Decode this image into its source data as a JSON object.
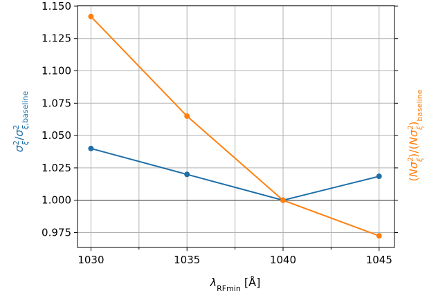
{
  "chart_data": {
    "type": "line",
    "x": [
      1030,
      1035,
      1040,
      1045
    ],
    "xlim": [
      1029.3,
      1045.8
    ],
    "xticks": [
      1030,
      1035,
      1040,
      1045
    ],
    "xlabel": {
      "main": "λ",
      "sub": "RFmin",
      "unit": " [Å]"
    },
    "grid": true,
    "y_left": {
      "ylim": [
        0.9635,
        1.1505
      ],
      "ticks": [
        "1.150",
        "1.125",
        "1.100",
        "1.075",
        "1.050",
        "1.025",
        "1.000",
        "0.975"
      ],
      "label": "σξ²/σξ,baseline²",
      "color": "#1f6fa8"
    },
    "reference_line": 1.0,
    "series": [
      {
        "axis": "left",
        "color": "#1f6fa8",
        "values": [
          1.04,
          1.02,
          1.0,
          1.0185
        ]
      },
      {
        "axis": "right",
        "color": "#ff7f0e",
        "values": [
          1.142,
          1.065,
          1.0,
          0.9725
        ]
      }
    ],
    "y_right": {
      "label": "(Nσξ²)/(Nσξ²)baseline",
      "color": "#ff7f0e"
    }
  }
}
